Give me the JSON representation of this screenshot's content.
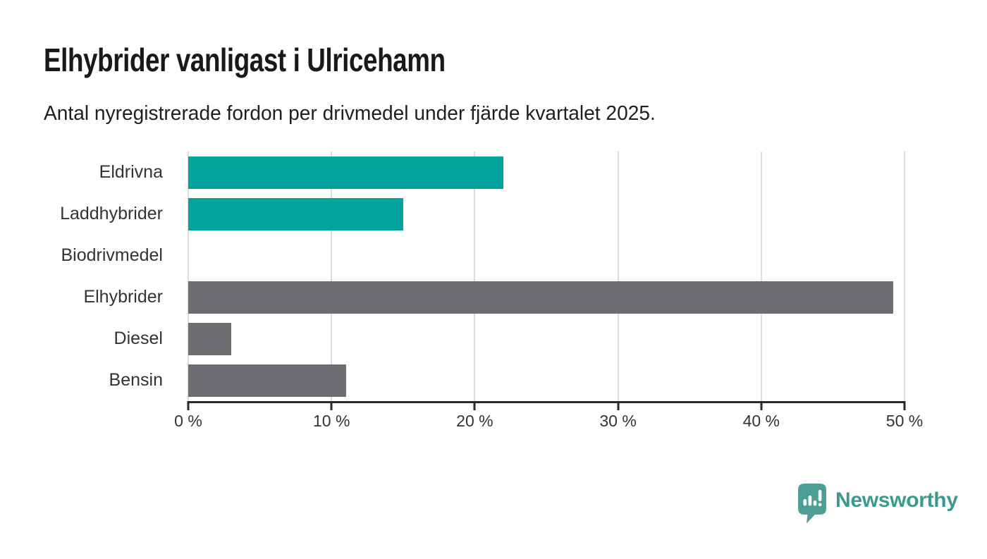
{
  "title": "Elhybrider vanligast i Ulricehamn",
  "subtitle": "Antal nyregistrerade fordon per drivmedel under fjärde kvartalet 2025.",
  "branding": {
    "name": "Newsworthy",
    "icon": "newsworthy-speech-bubble-chart-icon",
    "icon_color": "#4d9e95",
    "text_color": "#3b9a90"
  },
  "colors": {
    "highlight_bar": "#00a49a",
    "default_bar": "#6e6e72",
    "gridline": "#dcdcdc",
    "axis": "#2a2a2a",
    "text": "#333333",
    "title_text": "#191919",
    "background": "#ffffff"
  },
  "chart_data": {
    "type": "bar",
    "orientation": "horizontal",
    "title": "Elhybrider vanligast i Ulricehamn",
    "subtitle": "Antal nyregistrerade fordon per drivmedel under fjärde kvartalet 2025.",
    "categories": [
      "Eldrivna",
      "Laddhybrider",
      "Biodrivmedel",
      "Elhybrider",
      "Diesel",
      "Bensin"
    ],
    "values": [
      22,
      15,
      0,
      49.2,
      3,
      11
    ],
    "unit": "%",
    "bar_colors": [
      "#00a49a",
      "#00a49a",
      "#00a49a",
      "#6e6e72",
      "#6e6e72",
      "#6e6e72"
    ],
    "xlim": [
      0,
      50
    ],
    "x_tick_values": [
      0,
      10,
      20,
      30,
      40,
      50
    ],
    "x_tick_labels": [
      "0 %",
      "10 %",
      "20 %",
      "30 %",
      "40 %",
      "50 %"
    ],
    "grid": "vertical-gridlines-on",
    "legend": "none",
    "xlabel": "",
    "ylabel": ""
  }
}
